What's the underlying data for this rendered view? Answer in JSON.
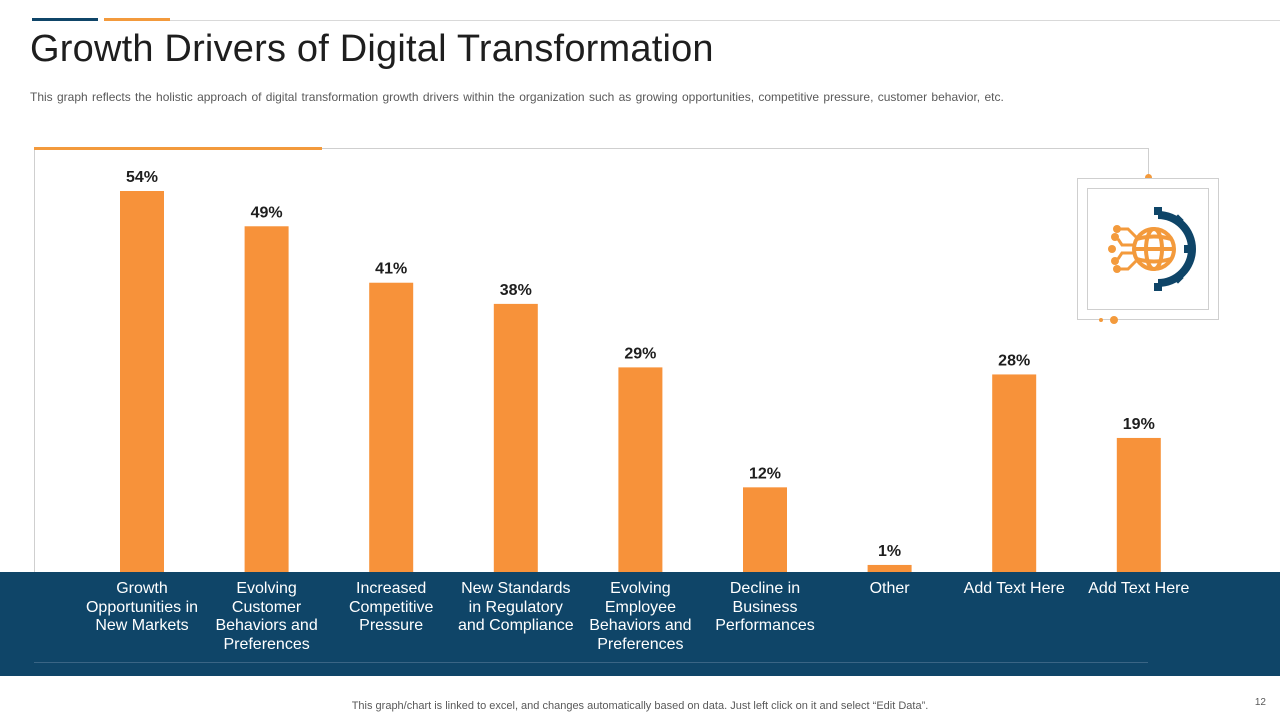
{
  "slide": {
    "title": "Growth Drivers of Digital Transformation",
    "subtitle": "This graph reflects the holistic approach  of digital transformation  growth  drivers  within the organization  such as growing  opportunities,  competitive  pressure,  customer behavior,  etc.",
    "footer": "This graph/chart is linked to excel,  and changes automatically based on data. Just left click on it and select “Edit Data”.",
    "page_number": "12",
    "icon": "globe-gear-icon"
  },
  "colors": {
    "bar": "#f7923a",
    "band": "#0f4568",
    "accent_orange": "#f39a3c",
    "accent_dark": "#0f4568"
  },
  "chart_data": {
    "type": "bar",
    "title": "",
    "xlabel": "",
    "ylabel": "",
    "ylim": [
      0,
      60
    ],
    "grid": false,
    "categories": [
      "Growth Opportunities in New Markets",
      "Evolving Customer Behaviors and Preferences",
      "Increased Competitive Pressure",
      "New Standards in Regulatory and Compliance",
      "Evolving Employee Behaviors and Preferences",
      "Decline in Business Performances",
      "Other",
      "Add Text Here",
      "Add Text Here"
    ],
    "category_lines": [
      [
        "Growth",
        "Opportunities in",
        "New Markets"
      ],
      [
        "Evolving",
        "Customer",
        "Behaviors and",
        "Preferences"
      ],
      [
        "Increased",
        "Competitive",
        "Pressure"
      ],
      [
        "New Standards",
        "in Regulatory",
        "and Compliance"
      ],
      [
        "Evolving",
        "Employee",
        "Behaviors and",
        "Preferences"
      ],
      [
        "Decline in",
        "Business",
        "Performances"
      ],
      [
        "Other"
      ],
      [
        "Add Text Here"
      ],
      [
        "Add Text Here"
      ]
    ],
    "values": [
      54,
      49,
      41,
      38,
      29,
      12,
      1,
      28,
      19
    ],
    "data_labels": [
      "54%",
      "49%",
      "41%",
      "38%",
      "29%",
      "12%",
      "1%",
      "28%",
      "19%"
    ]
  }
}
